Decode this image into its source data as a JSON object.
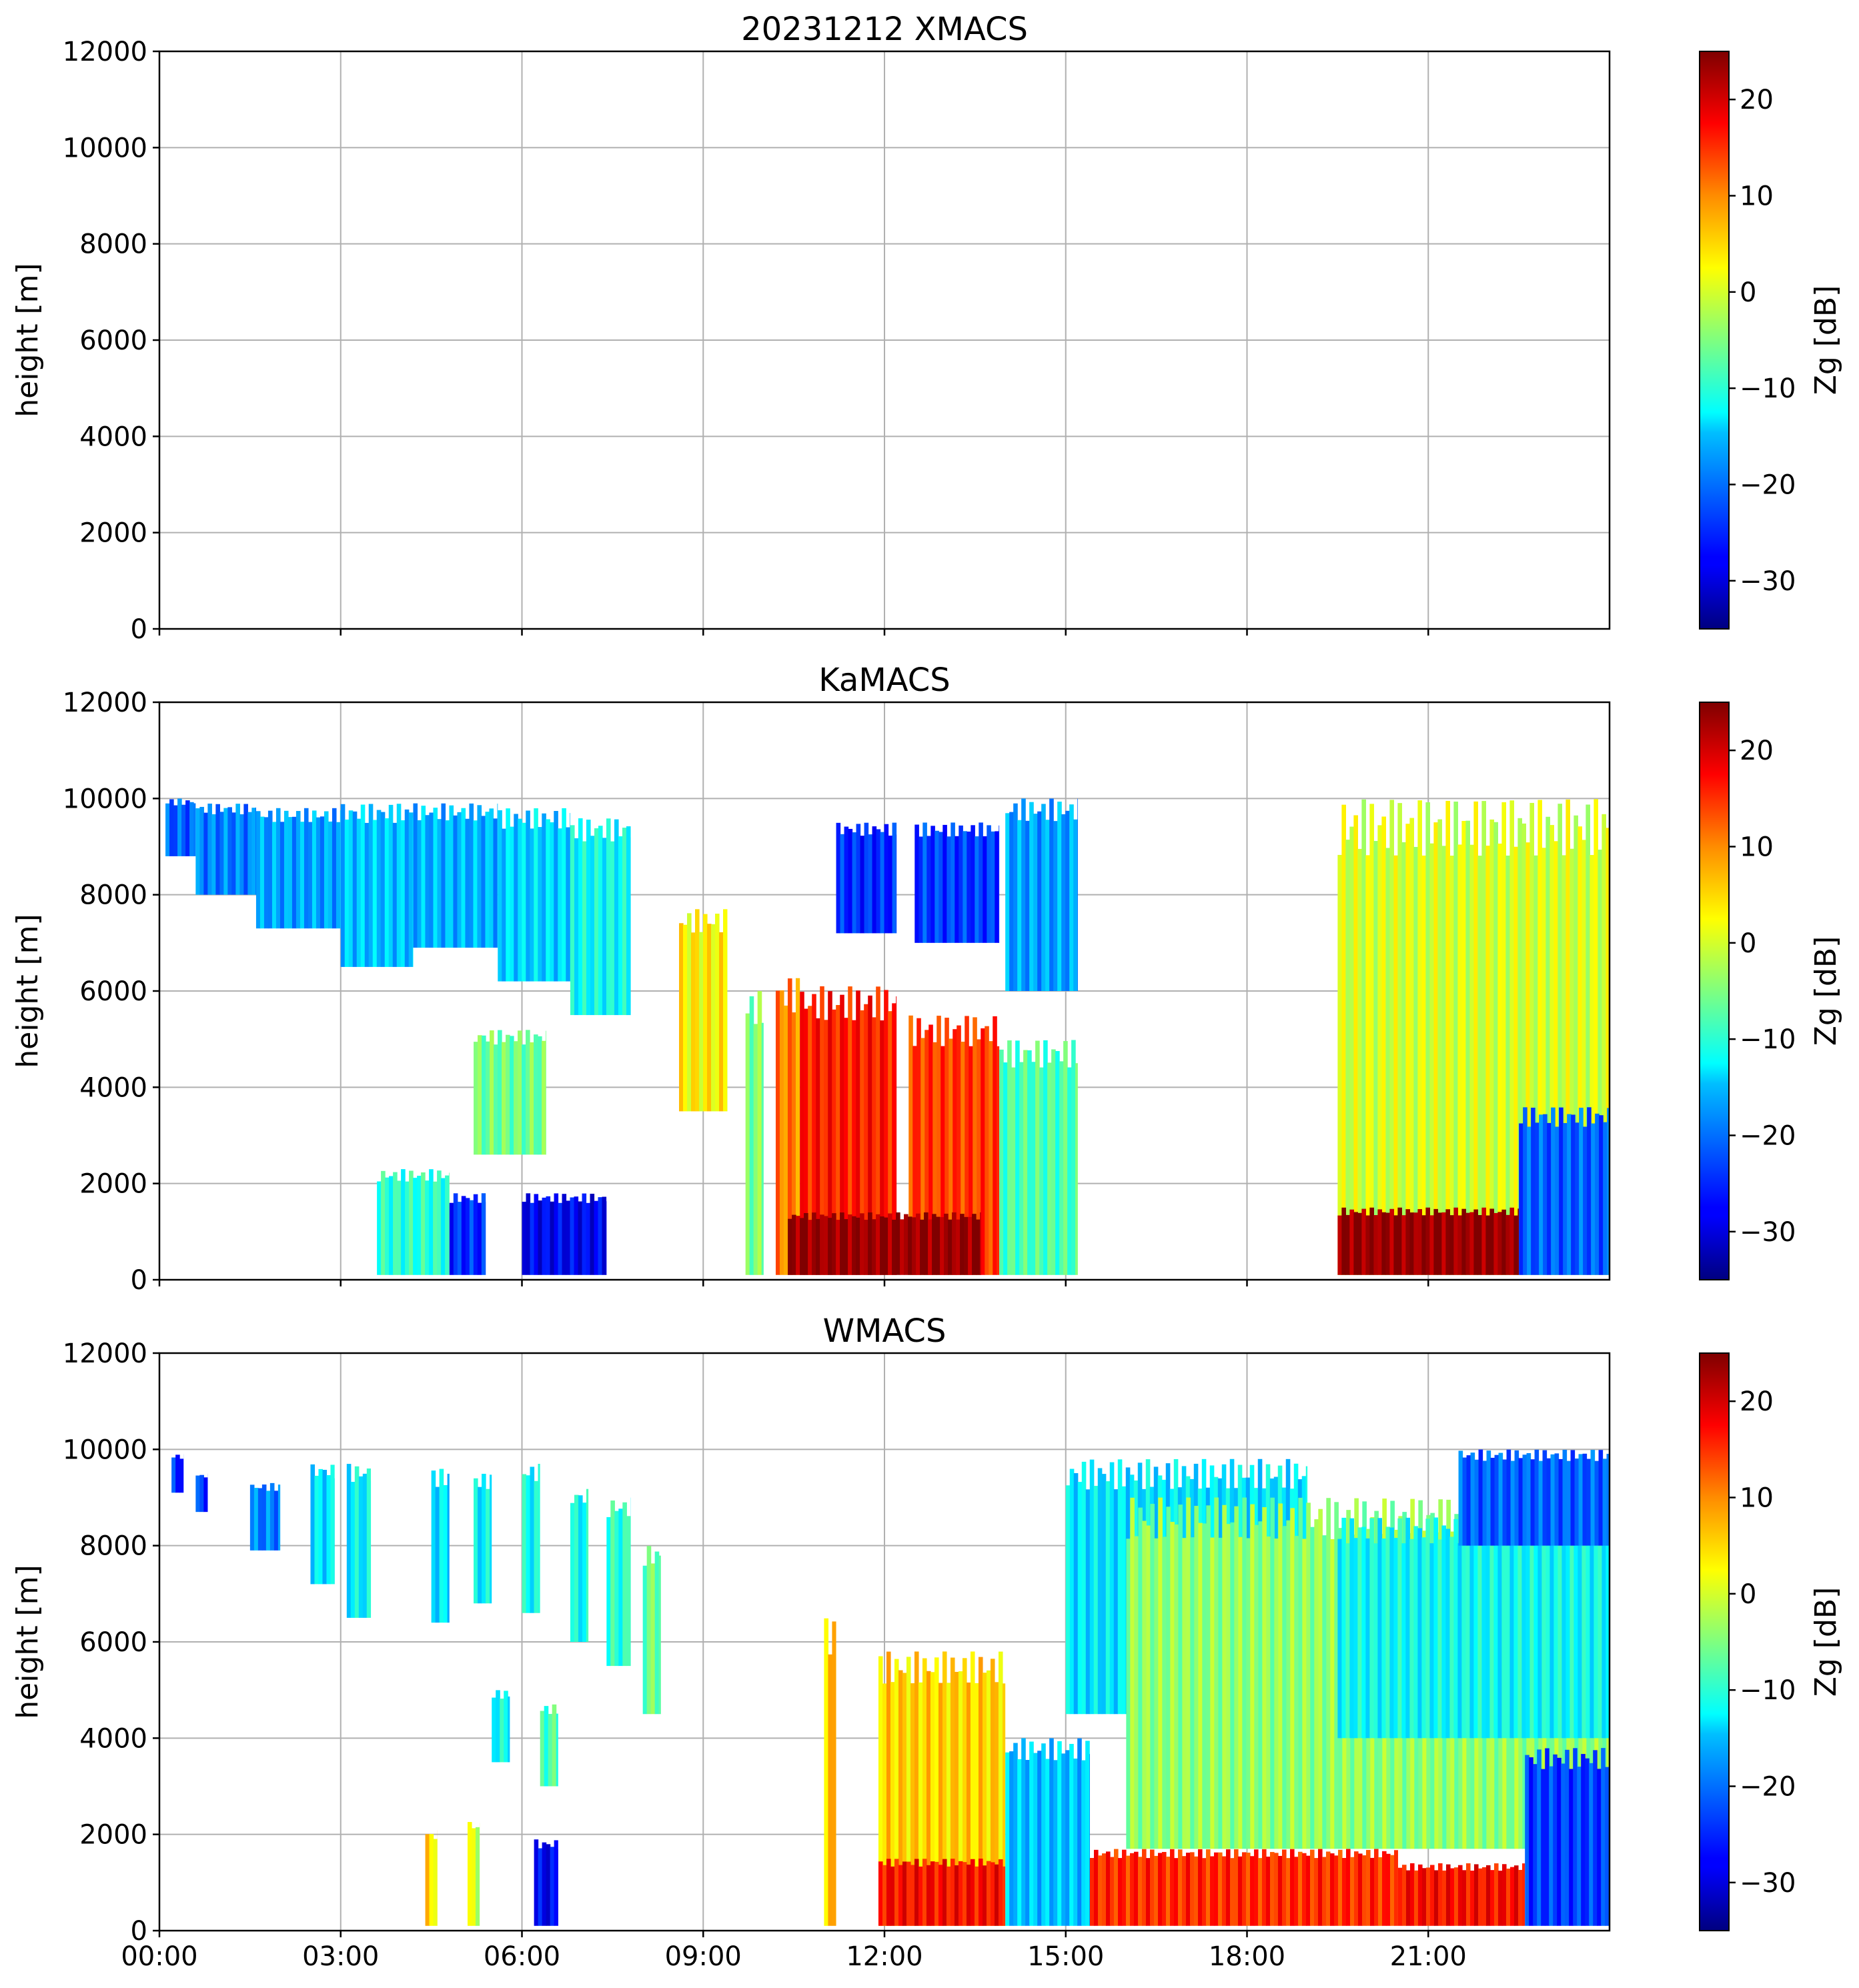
{
  "chart_data": [
    {
      "type": "heatmap",
      "title": "20231212 XMACS",
      "xlabel": "",
      "ylabel": "height [m]",
      "xlim": [
        "00:00",
        "24:00"
      ],
      "ylim": [
        0,
        12000
      ],
      "yticks": [
        "0",
        "2000",
        "4000",
        "6000",
        "8000",
        "10000",
        "12000"
      ],
      "xticks": [],
      "grid": true,
      "colorbar": {
        "label": "Zg [dB]",
        "range": [
          -35,
          25
        ],
        "ticks": [
          "−30",
          "−20",
          "−10",
          "0",
          "10",
          "20"
        ]
      },
      "echo_regions": []
    },
    {
      "type": "heatmap",
      "title": "KaMACS",
      "xlabel": "",
      "ylabel": "height [m]",
      "xlim": [
        "00:00",
        "24:00"
      ],
      "ylim": [
        0,
        12000
      ],
      "yticks": [
        "0",
        "2000",
        "4000",
        "6000",
        "8000",
        "10000",
        "12000"
      ],
      "xticks": [],
      "grid": true,
      "colorbar": {
        "label": "Zg [dB]",
        "range": [
          -35,
          25
        ],
        "ticks": [
          "−30",
          "−20",
          "−10",
          "0",
          "10",
          "20"
        ]
      },
      "echo_regions": [
        {
          "t": [
            0.1,
            0.6
          ],
          "base": 8800,
          "top": 10000,
          "zg": -22
        },
        {
          "t": [
            0.6,
            1.6
          ],
          "base": 8000,
          "top": 9900,
          "zg": -20
        },
        {
          "t": [
            1.6,
            3.0
          ],
          "base": 7300,
          "top": 9800,
          "zg": -18
        },
        {
          "t": [
            3.0,
            4.2
          ],
          "base": 6500,
          "top": 9900,
          "zg": -16
        },
        {
          "t": [
            4.2,
            5.6
          ],
          "base": 6900,
          "top": 9900,
          "zg": -17
        },
        {
          "t": [
            5.6,
            6.8
          ],
          "base": 6200,
          "top": 9800,
          "zg": -15
        },
        {
          "t": [
            6.8,
            7.8
          ],
          "base": 5500,
          "top": 9600,
          "zg": -12
        },
        {
          "t": [
            8.6,
            9.4
          ],
          "base": 3500,
          "top": 7700,
          "zg": 3
        },
        {
          "t": [
            5.2,
            6.4
          ],
          "base": 2600,
          "top": 5200,
          "zg": -6
        },
        {
          "t": [
            3.6,
            4.8
          ],
          "base": 100,
          "top": 2300,
          "zg": -10
        },
        {
          "t": [
            4.8,
            5.4
          ],
          "base": 100,
          "top": 1800,
          "zg": -25
        },
        {
          "t": [
            6.0,
            7.4
          ],
          "base": 100,
          "top": 1800,
          "zg": -28
        },
        {
          "t": [
            9.7,
            10.0
          ],
          "base": 100,
          "top": 6000,
          "zg": -5
        },
        {
          "t": [
            10.2,
            10.6
          ],
          "base": 100,
          "top": 6300,
          "zg": 10
        },
        {
          "t": [
            10.6,
            12.2
          ],
          "base": 100,
          "top": 6100,
          "zg": 16
        },
        {
          "t": [
            11.2,
            12.2
          ],
          "base": 7200,
          "top": 9500,
          "zg": -25
        },
        {
          "t": [
            12.4,
            13.9
          ],
          "base": 100,
          "top": 5500,
          "zg": 14
        },
        {
          "t": [
            12.5,
            13.9
          ],
          "base": 7000,
          "top": 9500,
          "zg": -24
        },
        {
          "t": [
            13.9,
            15.2
          ],
          "base": 100,
          "top": 5000,
          "zg": -8
        },
        {
          "t": [
            14.0,
            15.2
          ],
          "base": 6000,
          "top": 10000,
          "zg": -18
        },
        {
          "t": [
            10.4,
            13.6
          ],
          "base": 100,
          "top": 1400,
          "zg": 24
        },
        {
          "t": [
            19.5,
            24.0
          ],
          "base": 100,
          "top": 10000,
          "zg": 0
        },
        {
          "t": [
            19.5,
            22.5
          ],
          "base": 100,
          "top": 1500,
          "zg": 24
        },
        {
          "t": [
            22.5,
            24.0
          ],
          "base": 100,
          "top": 3600,
          "zg": -22
        }
      ]
    },
    {
      "type": "heatmap",
      "title": "WMACS",
      "xlabel": "",
      "ylabel": "height [m]",
      "xlim": [
        "00:00",
        "24:00"
      ],
      "ylim": [
        0,
        12000
      ],
      "yticks": [
        "0",
        "2000",
        "4000",
        "6000",
        "8000",
        "10000",
        "12000"
      ],
      "xticks": [
        "00:00",
        "03:00",
        "06:00",
        "09:00",
        "12:00",
        "15:00",
        "18:00",
        "21:00"
      ],
      "grid": true,
      "colorbar": {
        "label": "Zg [dB]",
        "range": [
          -35,
          25
        ],
        "ticks": [
          "−30",
          "−20",
          "−10",
          "0",
          "10",
          "20"
        ]
      },
      "echo_regions": [
        {
          "t": [
            0.2,
            0.4
          ],
          "base": 9100,
          "top": 9900,
          "zg": -25
        },
        {
          "t": [
            0.6,
            0.8
          ],
          "base": 8700,
          "top": 9500,
          "zg": -24
        },
        {
          "t": [
            1.5,
            2.0
          ],
          "base": 7900,
          "top": 9300,
          "zg": -20
        },
        {
          "t": [
            2.5,
            2.9
          ],
          "base": 7200,
          "top": 9700,
          "zg": -14
        },
        {
          "t": [
            3.1,
            3.5
          ],
          "base": 6500,
          "top": 9700,
          "zg": -13
        },
        {
          "t": [
            4.5,
            4.8
          ],
          "base": 6400,
          "top": 9600,
          "zg": -14
        },
        {
          "t": [
            5.2,
            5.5
          ],
          "base": 6800,
          "top": 9500,
          "zg": -13
        },
        {
          "t": [
            6.0,
            6.3
          ],
          "base": 6600,
          "top": 9700,
          "zg": -12
        },
        {
          "t": [
            6.8,
            7.1
          ],
          "base": 6000,
          "top": 9200,
          "zg": -12
        },
        {
          "t": [
            7.4,
            7.8
          ],
          "base": 5500,
          "top": 9000,
          "zg": -10
        },
        {
          "t": [
            8.0,
            8.3
          ],
          "base": 4500,
          "top": 8000,
          "zg": -6
        },
        {
          "t": [
            5.5,
            5.8
          ],
          "base": 3500,
          "top": 5000,
          "zg": -12
        },
        {
          "t": [
            6.3,
            6.6
          ],
          "base": 3000,
          "top": 4700,
          "zg": -8
        },
        {
          "t": [
            4.4,
            4.6
          ],
          "base": 100,
          "top": 2100,
          "zg": 4
        },
        {
          "t": [
            5.1,
            5.3
          ],
          "base": 100,
          "top": 2300,
          "zg": 0
        },
        {
          "t": [
            6.2,
            6.6
          ],
          "base": 100,
          "top": 1900,
          "zg": -28
        },
        {
          "t": [
            11.0,
            11.2
          ],
          "base": 100,
          "top": 6500,
          "zg": 6
        },
        {
          "t": [
            11.9,
            14.0
          ],
          "base": 100,
          "top": 5800,
          "zg": 5
        },
        {
          "t": [
            11.9,
            14.0
          ],
          "base": 100,
          "top": 1500,
          "zg": 17
        },
        {
          "t": [
            14.0,
            15.4
          ],
          "base": 100,
          "top": 4000,
          "zg": -16
        },
        {
          "t": [
            15.0,
            19.0
          ],
          "base": 4500,
          "top": 9800,
          "zg": -14
        },
        {
          "t": [
            15.4,
            20.5
          ],
          "base": 100,
          "top": 1700,
          "zg": 15
        },
        {
          "t": [
            16.0,
            24.0
          ],
          "base": 1700,
          "top": 9000,
          "zg": -4
        },
        {
          "t": [
            19.5,
            24.0
          ],
          "base": 4000,
          "top": 8600,
          "zg": -12
        },
        {
          "t": [
            20.5,
            22.6
          ],
          "base": 100,
          "top": 1400,
          "zg": 17
        },
        {
          "t": [
            22.6,
            24.0
          ],
          "base": 100,
          "top": 3800,
          "zg": -24
        },
        {
          "t": [
            21.5,
            24.0
          ],
          "base": 8000,
          "top": 10000,
          "zg": -22
        }
      ]
    }
  ]
}
